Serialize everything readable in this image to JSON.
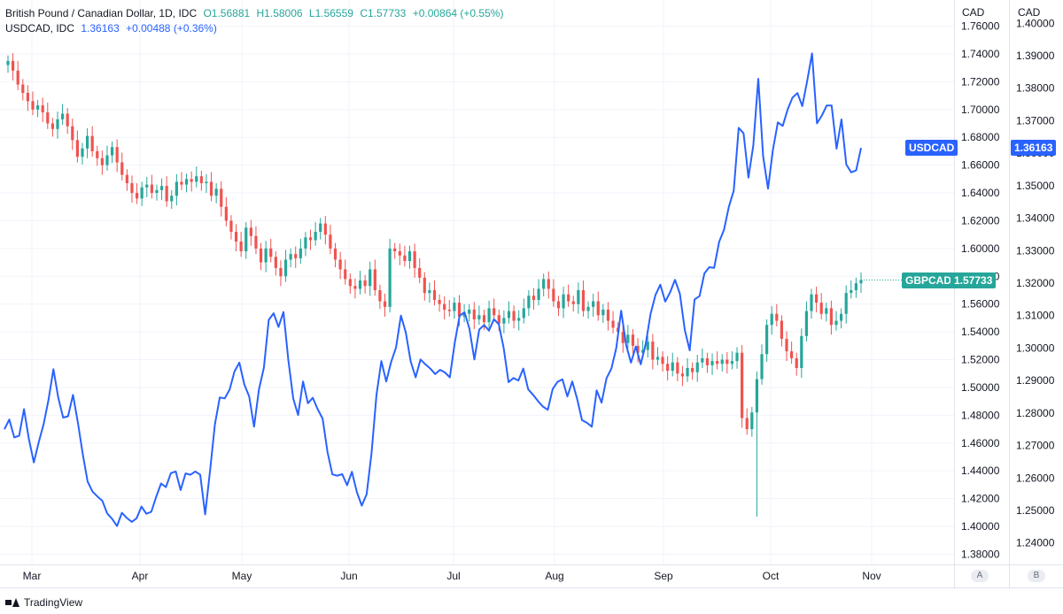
{
  "legend": {
    "gbp": {
      "name": "British Pound / Canadian Dollar, 1D, IDC",
      "o": "O1.56881",
      "h": "H1.58006",
      "l": "L1.56559",
      "c": "C1.57733",
      "chg": "+0.00864 (+0.55%)"
    },
    "usd": {
      "name": "USDCAD, IDC",
      "last": "1.36163",
      "chg": "+0.00488 (+0.36%)"
    }
  },
  "scales": {
    "left_title": "CAD",
    "right_title": "CAD",
    "left_badge": "A",
    "right_badge": "B"
  },
  "tags": {
    "usd_label": "USDCAD",
    "usd_value": "1.36163",
    "gbp_label": "GBPCAD",
    "gbp_value": "1.57733"
  },
  "footer": {
    "brand": "TradingView"
  },
  "colors": {
    "up": "#26a69a",
    "down": "#ef5350",
    "usd_line": "#2962ff",
    "grid": "#f0f3fa"
  },
  "chart_data": {
    "type": "line",
    "x_ticks": [
      "Mar",
      "Apr",
      "May",
      "Jun",
      "Jul",
      "Aug",
      "Sep",
      "Oct",
      "Nov"
    ],
    "axis_gbp": {
      "ticks": [
        1.38,
        1.4,
        1.42,
        1.44,
        1.46,
        1.48,
        1.5,
        1.52,
        1.54,
        1.56,
        1.58,
        1.6,
        1.62,
        1.64,
        1.66,
        1.68,
        1.7,
        1.72,
        1.74,
        1.76
      ]
    },
    "axis_usd": {
      "ticks": [
        1.24,
        1.25,
        1.26,
        1.27,
        1.28,
        1.29,
        1.3,
        1.31,
        1.32,
        1.33,
        1.34,
        1.35,
        1.36,
        1.37,
        1.38,
        1.39,
        1.4
      ]
    },
    "series": [
      {
        "name": "GBPCAD",
        "type": "candlestick",
        "closes": [
          1.735,
          1.728,
          1.718,
          1.712,
          1.706,
          1.7,
          1.703,
          1.698,
          1.69,
          1.686,
          1.693,
          1.697,
          1.688,
          1.678,
          1.666,
          1.672,
          1.681,
          1.67,
          1.665,
          1.66,
          1.667,
          1.673,
          1.662,
          1.653,
          1.647,
          1.64,
          1.636,
          1.644,
          1.646,
          1.64,
          1.642,
          1.645,
          1.634,
          1.638,
          1.648,
          1.646,
          1.65,
          1.648,
          1.652,
          1.647,
          1.648,
          1.638,
          1.643,
          1.63,
          1.62,
          1.612,
          1.605,
          1.598,
          1.615,
          1.609,
          1.6,
          1.59,
          1.6,
          1.594,
          1.586,
          1.58,
          1.592,
          1.596,
          1.593,
          1.6,
          1.608,
          1.606,
          1.612,
          1.618,
          1.61,
          1.6,
          1.592,
          1.585,
          1.578,
          1.573,
          1.571,
          1.577,
          1.573,
          1.585,
          1.57,
          1.562,
          1.558,
          1.6,
          1.598,
          1.595,
          1.591,
          1.598,
          1.586,
          1.579,
          1.568,
          1.57,
          1.563,
          1.56,
          1.556,
          1.555,
          1.561,
          1.551,
          1.553,
          1.556,
          1.549,
          1.552,
          1.547,
          1.557,
          1.552,
          1.546,
          1.55,
          1.555,
          1.548,
          1.55,
          1.557,
          1.566,
          1.563,
          1.571,
          1.578,
          1.571,
          1.562,
          1.557,
          1.567,
          1.562,
          1.56,
          1.57,
          1.555,
          1.558,
          1.562,
          1.552,
          1.556,
          1.548,
          1.543,
          1.54,
          1.532,
          1.538,
          1.53,
          1.525,
          1.527,
          1.533,
          1.52,
          1.522,
          1.517,
          1.512,
          1.518,
          1.51,
          1.508,
          1.514,
          1.511,
          1.518,
          1.521,
          1.516,
          1.519,
          1.517,
          1.52,
          1.517,
          1.519,
          1.525,
          1.478,
          1.47,
          1.482,
          1.506,
          1.524,
          1.545,
          1.553,
          1.548,
          1.535,
          1.526,
          1.521,
          1.514,
          1.537,
          1.555,
          1.567,
          1.561,
          1.553,
          1.557,
          1.545,
          1.548,
          1.553,
          1.568,
          1.57,
          1.575,
          1.5773
        ]
      },
      {
        "name": "USDCAD",
        "type": "line",
        "values": [
          1.275,
          1.278,
          1.2725,
          1.273,
          1.2812,
          1.272,
          1.2648,
          1.271,
          1.2765,
          1.284,
          1.2935,
          1.2847,
          1.2786,
          1.279,
          1.2856,
          1.2771,
          1.2674,
          1.2589,
          1.2558,
          1.2543,
          1.253,
          1.2491,
          1.2474,
          1.2452,
          1.2493,
          1.2477,
          1.2465,
          1.2476,
          1.2512,
          1.249,
          1.2496,
          1.2542,
          1.2583,
          1.2572,
          1.2615,
          1.262,
          1.2563,
          1.2614,
          1.261,
          1.262,
          1.261,
          1.2488,
          1.2622,
          1.2765,
          1.2848,
          1.2845,
          1.2872,
          1.2928,
          1.2955,
          1.2888,
          1.2851,
          1.2758,
          1.2872,
          1.294,
          1.3087,
          1.3107,
          1.3065,
          1.3111,
          1.2963,
          1.2845,
          1.2794,
          1.2897,
          1.283,
          1.2847,
          1.2812,
          1.2783,
          1.268,
          1.2611,
          1.2607,
          1.2612,
          1.2578,
          1.2619,
          1.2556,
          1.2515,
          1.255,
          1.2676,
          1.2856,
          1.296,
          1.2897,
          1.2957,
          1.3002,
          1.31,
          1.3048,
          1.2959,
          1.291,
          1.2965,
          1.295,
          1.2937,
          1.292,
          1.2933,
          1.2925,
          1.291,
          1.3017,
          1.31,
          1.311,
          1.306,
          1.2965,
          1.3057,
          1.3071,
          1.3054,
          1.3089,
          1.3073,
          1.3,
          1.2895,
          1.2908,
          1.29,
          1.2937,
          1.2873,
          1.2856,
          1.2837,
          1.282,
          1.281,
          1.2874,
          1.2896,
          1.2904,
          1.2851,
          1.2897,
          1.2844,
          1.2778,
          1.277,
          1.2758,
          1.287,
          1.2832,
          1.2907,
          1.2937,
          1.3,
          1.3115,
          1.301,
          1.2955,
          1.3005,
          1.295,
          1.3012,
          1.3105,
          1.3163,
          1.3195,
          1.3143,
          1.3172,
          1.321,
          1.3167,
          1.3055,
          1.2993,
          1.315,
          1.316,
          1.323,
          1.3249,
          1.3247,
          1.3327,
          1.3364,
          1.3435,
          1.3485,
          1.3678,
          1.3661,
          1.3525,
          1.3624,
          1.3829,
          1.359,
          1.3491,
          1.361,
          1.3695,
          1.3684,
          1.3734,
          1.3771,
          1.3785,
          1.3745,
          1.3822,
          1.3907,
          1.3692,
          1.3716,
          1.3747,
          1.3747,
          1.3614,
          1.3704,
          1.3565,
          1.3541,
          1.3547,
          1.36163
        ]
      }
    ]
  }
}
